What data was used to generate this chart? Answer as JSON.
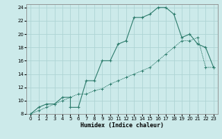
{
  "xlabel": "Humidex (Indice chaleur)",
  "bg_color": "#cceaea",
  "grid_color": "#aed4d4",
  "line_color": "#2a7a6a",
  "xlim": [
    -0.5,
    23.5
  ],
  "ylim": [
    8,
    24.5
  ],
  "xtick_labels": [
    "0",
    "1",
    "2",
    "3",
    "4",
    "5",
    "6",
    "7",
    "8",
    "9",
    "10",
    "11",
    "12",
    "13",
    "14",
    "15",
    "16",
    "17",
    "18",
    "19",
    "20",
    "21",
    "22",
    "23"
  ],
  "yticks": [
    8,
    10,
    12,
    14,
    16,
    18,
    20,
    22,
    24
  ],
  "line1_x": [
    0,
    1,
    2,
    3,
    4,
    5,
    5,
    6,
    7,
    8,
    9,
    10,
    11,
    12,
    13,
    14,
    15,
    16,
    17,
    18,
    19,
    20,
    21,
    22,
    23
  ],
  "line1_y": [
    8,
    9,
    9.5,
    9.5,
    10.5,
    10.5,
    9,
    9,
    13,
    13,
    16,
    16,
    18.5,
    19,
    22.5,
    22.5,
    23,
    24,
    24,
    23,
    19.5,
    20,
    18.5,
    18,
    15
  ],
  "line2_x": [
    0,
    1,
    2,
    3,
    4,
    5,
    6,
    7,
    8,
    9,
    10,
    11,
    12,
    13,
    14,
    15,
    16,
    17,
    18,
    19,
    20,
    21,
    22,
    23
  ],
  "line2_y": [
    8,
    8.5,
    9,
    9.5,
    10,
    10.5,
    11,
    11,
    11.5,
    11.8,
    12.5,
    13,
    13.5,
    14,
    14.5,
    15,
    16,
    17,
    18,
    19,
    19,
    19.5,
    15,
    15
  ]
}
